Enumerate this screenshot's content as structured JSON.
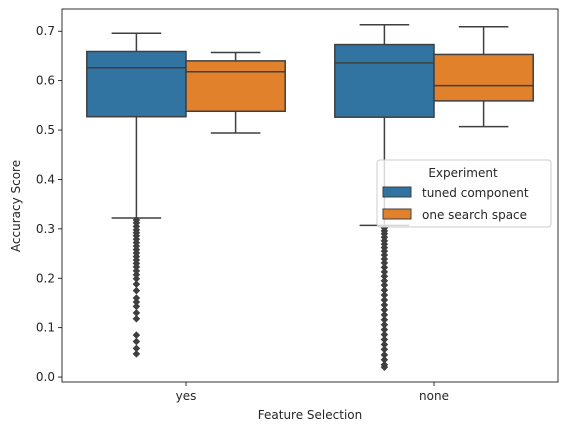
{
  "chart_data": {
    "type": "box",
    "xlabel": "Feature Selection",
    "ylabel": "Accuracy Score",
    "categories": [
      "yes",
      "none"
    ],
    "ylim": [
      -0.01,
      0.745
    ],
    "yticks": [
      0.0,
      0.1,
      0.2,
      0.3,
      0.4,
      0.5,
      0.6,
      0.7
    ],
    "ytick_labels": [
      "0.0",
      "0.1",
      "0.2",
      "0.3",
      "0.4",
      "0.5",
      "0.6",
      "0.7"
    ],
    "grid": false,
    "legend": {
      "title": "Experiment",
      "placement": "center-right"
    },
    "series": [
      {
        "name": "tuned component",
        "color": "#3274a1",
        "boxes": [
          {
            "category": "yes",
            "whisker_low": 0.322,
            "q1": 0.527,
            "median": 0.626,
            "q3": 0.659,
            "whisker_high": 0.696,
            "outliers": [
              0.318,
              0.312,
              0.305,
              0.298,
              0.292,
              0.286,
              0.279,
              0.272,
              0.265,
              0.258,
              0.251,
              0.244,
              0.237,
              0.23,
              0.223,
              0.215,
              0.207,
              0.199,
              0.188,
              0.175,
              0.16,
              0.152,
              0.143,
              0.13,
              0.118,
              0.085,
              0.072,
              0.058,
              0.047
            ]
          },
          {
            "category": "none",
            "whisker_low": 0.307,
            "q1": 0.526,
            "median": 0.636,
            "q3": 0.673,
            "whisker_high": 0.713,
            "outliers": [
              0.302,
              0.296,
              0.29,
              0.283,
              0.276,
              0.269,
              0.262,
              0.255,
              0.247,
              0.239,
              0.231,
              0.222,
              0.213,
              0.204,
              0.195,
              0.186,
              0.176,
              0.166,
              0.156,
              0.146,
              0.136,
              0.126,
              0.116,
              0.106,
              0.096,
              0.086,
              0.076,
              0.066,
              0.056,
              0.045,
              0.035,
              0.025,
              0.02
            ]
          }
        ]
      },
      {
        "name": "one search space",
        "color": "#e1812c",
        "boxes": [
          {
            "category": "yes",
            "whisker_low": 0.494,
            "q1": 0.538,
            "median": 0.618,
            "q3": 0.64,
            "whisker_high": 0.657,
            "outliers": []
          },
          {
            "category": "none",
            "whisker_low": 0.507,
            "q1": 0.559,
            "median": 0.59,
            "q3": 0.653,
            "whisker_high": 0.709,
            "outliers": []
          }
        ]
      }
    ]
  }
}
